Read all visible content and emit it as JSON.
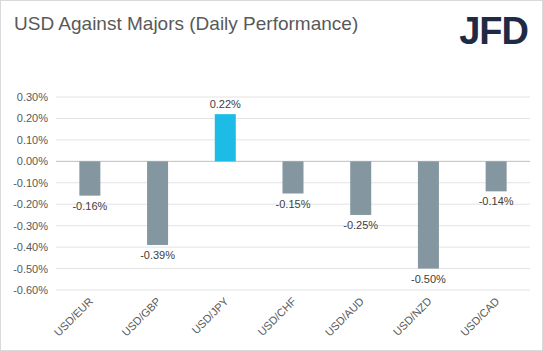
{
  "chart_data": {
    "type": "bar",
    "title": "USD Against Majors (Daily Performance)",
    "annotations": [
      "JFD"
    ],
    "categories": [
      "USD/EUR",
      "USD/GBP",
      "USD/JPY",
      "USD/CHF",
      "USD/AUD",
      "USD/NZD",
      "USD/CAD"
    ],
    "values": [
      -0.16,
      -0.39,
      0.22,
      -0.15,
      -0.25,
      -0.5,
      -0.14
    ],
    "value_labels": [
      "-0.16%",
      "-0.39%",
      "0.22%",
      "-0.15%",
      "-0.25%",
      "-0.50%",
      "-0.14%"
    ],
    "colors": [
      "#8497a0",
      "#8497a0",
      "#1cbce6",
      "#8497a0",
      "#8497a0",
      "#8497a0",
      "#8497a0"
    ],
    "ylim": [
      -0.6,
      0.3
    ],
    "yticks": [
      {
        "value": -0.6,
        "label": "-0.60%"
      },
      {
        "value": -0.5,
        "label": "-0.50%"
      },
      {
        "value": -0.4,
        "label": "-0.40%"
      },
      {
        "value": -0.3,
        "label": "-0.30%"
      },
      {
        "value": -0.2,
        "label": "-0.20%"
      },
      {
        "value": -0.1,
        "label": "-0.10%"
      },
      {
        "value": 0,
        "label": "0.00%"
      },
      {
        "value": 0.1,
        "label": "0.10%"
      },
      {
        "value": 0.2,
        "label": "0.20%"
      },
      {
        "value": 0.3,
        "label": "0.30%"
      }
    ],
    "grid": true,
    "data_labels": true
  }
}
